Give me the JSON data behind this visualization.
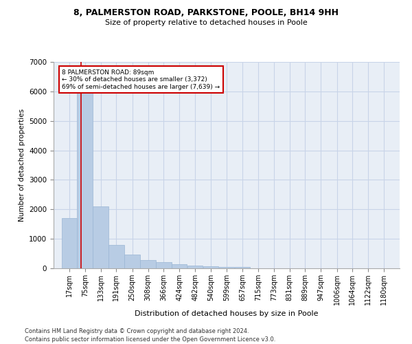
{
  "title1": "8, PALMERSTON ROAD, PARKSTONE, POOLE, BH14 9HH",
  "title2": "Size of property relative to detached houses in Poole",
  "xlabel": "Distribution of detached houses by size in Poole",
  "ylabel": "Number of detached properties",
  "footnote1": "Contains HM Land Registry data © Crown copyright and database right 2024.",
  "footnote2": "Contains public sector information licensed under the Open Government Licence v3.0.",
  "annotation_line1": "8 PALMERSTON ROAD: 89sqm",
  "annotation_line2": "← 30% of detached houses are smaller (3,372)",
  "annotation_line3": "69% of semi-detached houses are larger (7,639) →",
  "subject_value": 89,
  "bar_color": "#b8cce4",
  "bar_edge_color": "#9ab6d4",
  "subject_line_color": "#cc0000",
  "annotation_box_color": "#cc0000",
  "grid_color": "#c8d4e8",
  "background_color": "#e8eef6",
  "categories": [
    "17sqm",
    "75sqm",
    "133sqm",
    "191sqm",
    "250sqm",
    "308sqm",
    "366sqm",
    "424sqm",
    "482sqm",
    "540sqm",
    "599sqm",
    "657sqm",
    "715sqm",
    "773sqm",
    "831sqm",
    "889sqm",
    "947sqm",
    "1006sqm",
    "1064sqm",
    "1122sqm",
    "1180sqm"
  ],
  "bin_edges": [
    17,
    75,
    133,
    191,
    250,
    308,
    366,
    424,
    482,
    540,
    599,
    657,
    715,
    773,
    831,
    889,
    947,
    1006,
    1064,
    1122,
    1180
  ],
  "bin_width": 58,
  "values": [
    1700,
    5950,
    2100,
    800,
    460,
    290,
    200,
    130,
    95,
    75,
    55,
    45,
    0,
    0,
    0,
    0,
    0,
    0,
    0,
    0,
    0
  ],
  "ylim": [
    0,
    7000
  ],
  "yticks": [
    0,
    1000,
    2000,
    3000,
    4000,
    5000,
    6000,
    7000
  ]
}
